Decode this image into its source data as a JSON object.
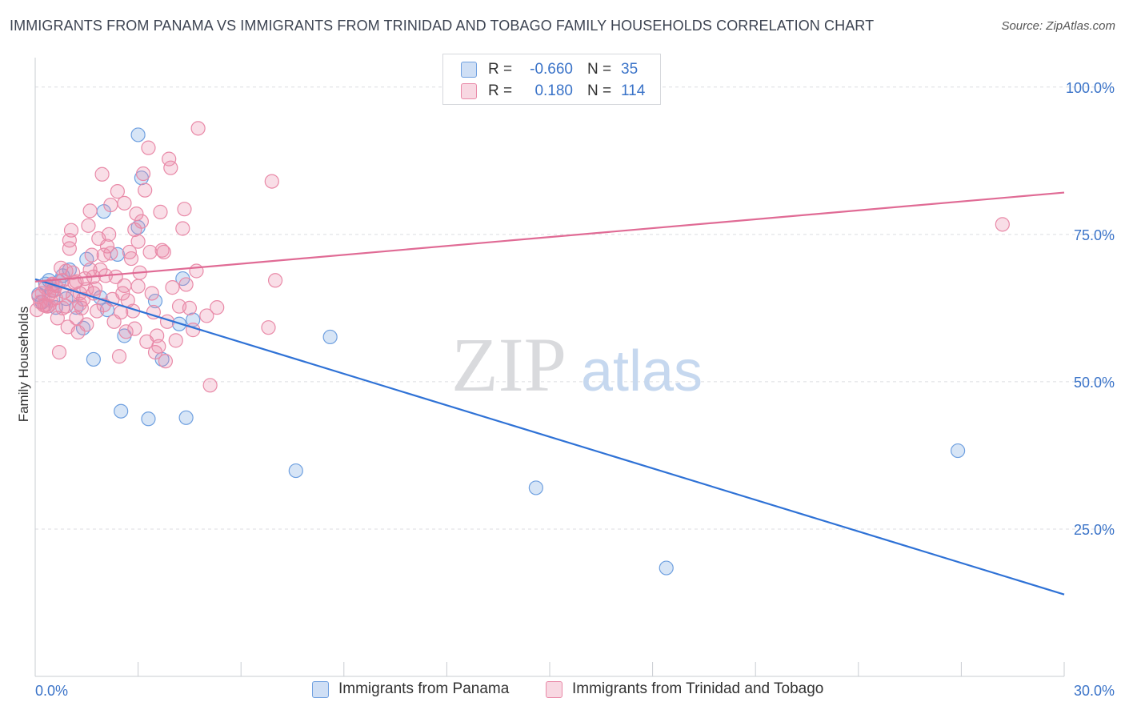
{
  "title": "IMMIGRANTS FROM PANAMA VS IMMIGRANTS FROM TRINIDAD AND TOBAGO FAMILY HOUSEHOLDS CORRELATION CHART",
  "source": "Source: ZipAtlas.com",
  "watermark": {
    "zip": "ZIP",
    "atlas": "atlas"
  },
  "stats": [
    {
      "r_label": "R =",
      "r_value": "-0.660",
      "n_label": "N =",
      "n_value": "35",
      "color": "#6fa0e0"
    },
    {
      "r_label": "R =",
      "r_value": "0.180",
      "n_label": "N =",
      "n_value": "114",
      "color": "#e98aa8"
    }
  ],
  "legend": [
    {
      "label": "Immigrants from Panama",
      "color": "#6fa0e0"
    },
    {
      "label": "Immigrants from Trinidad and Tobago",
      "color": "#e98aa8"
    }
  ],
  "chart_data": {
    "type": "scatter",
    "title": "IMMIGRANTS FROM PANAMA VS IMMIGRANTS FROM TRINIDAD AND TOBAGO FAMILY HOUSEHOLDS CORRELATION CHART",
    "xlabel": "",
    "ylabel": "Family Households",
    "xlim": [
      0,
      30
    ],
    "ylim": [
      0,
      105
    ],
    "x_tick_labels": [
      "0.0%",
      "30.0%"
    ],
    "y_ticks": [
      25,
      50,
      75,
      100
    ],
    "y_tick_labels": [
      "25.0%",
      "50.0%",
      "75.0%",
      "100.0%"
    ],
    "grid": true,
    "legend_position": "bottom",
    "series": [
      {
        "name": "Immigrants from Panama",
        "color": "#6fa0e0",
        "trend": {
          "x": [
            0,
            30
          ],
          "y": [
            67.4,
            13.9
          ]
        },
        "points": [
          [
            0.1,
            64.8
          ],
          [
            0.2,
            63.5
          ],
          [
            0.3,
            66.6
          ],
          [
            0.4,
            67.2
          ],
          [
            0.5,
            65.5
          ],
          [
            0.6,
            62.6
          ],
          [
            0.7,
            67.0
          ],
          [
            0.8,
            68.0
          ],
          [
            0.9,
            64.1
          ],
          [
            1.0,
            69.0
          ],
          [
            1.2,
            62.6
          ],
          [
            1.4,
            59.1
          ],
          [
            1.5,
            70.8
          ],
          [
            1.7,
            53.8
          ],
          [
            1.9,
            64.3
          ],
          [
            2.0,
            78.9
          ],
          [
            2.1,
            62.2
          ],
          [
            2.4,
            71.6
          ],
          [
            2.5,
            45.0
          ],
          [
            2.6,
            57.8
          ],
          [
            3.0,
            91.9
          ],
          [
            3.0,
            76.2
          ],
          [
            3.1,
            84.6
          ],
          [
            3.3,
            43.7
          ],
          [
            3.5,
            63.7
          ],
          [
            3.7,
            53.8
          ],
          [
            4.2,
            59.8
          ],
          [
            4.3,
            67.5
          ],
          [
            4.4,
            43.9
          ],
          [
            4.6,
            60.5
          ],
          [
            7.6,
            34.9
          ],
          [
            8.6,
            57.6
          ],
          [
            14.6,
            32.0
          ],
          [
            18.4,
            18.4
          ],
          [
            26.9,
            38.3
          ]
        ]
      },
      {
        "name": "Immigrants from Trinidad and Tobago",
        "color": "#e98aa8",
        "trend": {
          "x": [
            0,
            30
          ],
          "y": [
            67.0,
            82.1
          ]
        },
        "points": [
          [
            0.05,
            62.2
          ],
          [
            0.1,
            64.5
          ],
          [
            0.15,
            63.5
          ],
          [
            0.2,
            65.0
          ],
          [
            0.25,
            63.0
          ],
          [
            0.3,
            66.0
          ],
          [
            0.35,
            62.8
          ],
          [
            0.4,
            64.8
          ],
          [
            0.45,
            63.8
          ],
          [
            0.5,
            66.5
          ],
          [
            0.55,
            65.5
          ],
          [
            0.6,
            64.2
          ],
          [
            0.65,
            60.8
          ],
          [
            0.7,
            55.0
          ],
          [
            0.75,
            69.3
          ],
          [
            0.8,
            67.2
          ],
          [
            0.85,
            65.3
          ],
          [
            0.9,
            62.8
          ],
          [
            0.95,
            59.3
          ],
          [
            1.0,
            72.6
          ],
          [
            1.0,
            74.0
          ],
          [
            1.05,
            75.7
          ],
          [
            1.1,
            68.5
          ],
          [
            1.15,
            66.8
          ],
          [
            1.2,
            60.8
          ],
          [
            1.25,
            58.4
          ],
          [
            1.3,
            65.0
          ],
          [
            1.35,
            62.5
          ],
          [
            1.4,
            64.0
          ],
          [
            1.45,
            67.5
          ],
          [
            1.5,
            59.7
          ],
          [
            1.55,
            76.5
          ],
          [
            1.6,
            79.0
          ],
          [
            1.65,
            71.5
          ],
          [
            1.7,
            67.8
          ],
          [
            1.75,
            65.8
          ],
          [
            1.8,
            62.0
          ],
          [
            1.85,
            74.3
          ],
          [
            1.9,
            69.0
          ],
          [
            1.95,
            85.2
          ],
          [
            2.0,
            71.5
          ],
          [
            2.05,
            68.0
          ],
          [
            2.1,
            73.0
          ],
          [
            2.15,
            75.0
          ],
          [
            2.2,
            80.0
          ],
          [
            2.25,
            64.0
          ],
          [
            2.3,
            60.2
          ],
          [
            2.35,
            67.8
          ],
          [
            2.4,
            82.3
          ],
          [
            2.45,
            54.3
          ],
          [
            2.5,
            61.8
          ],
          [
            2.55,
            65.0
          ],
          [
            2.6,
            80.3
          ],
          [
            2.65,
            58.5
          ],
          [
            2.7,
            63.8
          ],
          [
            2.75,
            72.0
          ],
          [
            2.8,
            70.9
          ],
          [
            2.85,
            62.0
          ],
          [
            2.9,
            75.8
          ],
          [
            2.95,
            78.5
          ],
          [
            3.0,
            73.8
          ],
          [
            3.05,
            68.5
          ],
          [
            3.1,
            77.2
          ],
          [
            3.15,
            85.3
          ],
          [
            3.2,
            82.5
          ],
          [
            3.25,
            56.8
          ],
          [
            3.3,
            89.7
          ],
          [
            3.35,
            72.0
          ],
          [
            3.4,
            65.0
          ],
          [
            3.45,
            61.8
          ],
          [
            3.5,
            55.0
          ],
          [
            3.55,
            57.8
          ],
          [
            3.6,
            56.0
          ],
          [
            3.65,
            78.8
          ],
          [
            3.7,
            72.3
          ],
          [
            3.75,
            72.0
          ],
          [
            3.8,
            53.5
          ],
          [
            3.85,
            60.2
          ],
          [
            3.9,
            87.8
          ],
          [
            3.95,
            86.3
          ],
          [
            4.0,
            66.0
          ],
          [
            4.1,
            57.0
          ],
          [
            4.2,
            62.8
          ],
          [
            4.3,
            76.0
          ],
          [
            4.35,
            79.3
          ],
          [
            4.4,
            66.5
          ],
          [
            4.5,
            62.5
          ],
          [
            4.6,
            58.8
          ],
          [
            4.7,
            68.8
          ],
          [
            4.75,
            93.0
          ],
          [
            5.0,
            61.2
          ],
          [
            5.1,
            49.4
          ],
          [
            5.3,
            62.6
          ],
          [
            6.8,
            59.2
          ],
          [
            6.9,
            84.0
          ],
          [
            7.0,
            67.2
          ],
          [
            28.2,
            76.7
          ],
          [
            0.5,
            66.6
          ],
          [
            1.3,
            63.2
          ],
          [
            2.0,
            63.0
          ],
          [
            0.9,
            68.8
          ],
          [
            1.6,
            69.0
          ],
          [
            0.6,
            66.3
          ],
          [
            1.1,
            64.6
          ],
          [
            2.6,
            66.3
          ],
          [
            0.3,
            63.0
          ],
          [
            3.0,
            66.2
          ],
          [
            1.7,
            65.0
          ],
          [
            0.8,
            62.5
          ],
          [
            2.2,
            71.8
          ],
          [
            1.2,
            67.0
          ],
          [
            0.4,
            62.9
          ],
          [
            2.9,
            59.0
          ],
          [
            1.5,
            65.7
          ]
        ]
      }
    ]
  }
}
